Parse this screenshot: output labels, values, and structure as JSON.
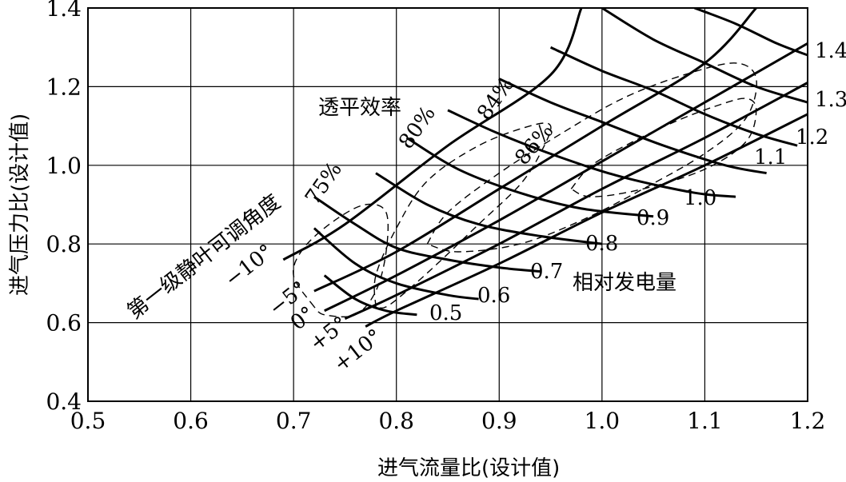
{
  "chart_data": {
    "type": "line",
    "title": "",
    "xlabel": "进气流量比(设计值)",
    "ylabel": "进气压力比(设计值)",
    "xlim": [
      0.5,
      1.2
    ],
    "ylim": [
      0.4,
      1.4
    ],
    "xticks": [
      "0.5",
      "0.6",
      "0.7",
      "0.8",
      "0.9",
      "1.0",
      "1.1",
      "1.2"
    ],
    "yticks": [
      "0.4",
      "0.6",
      "0.8",
      "1.0",
      "1.2",
      "1.4"
    ],
    "grid": true,
    "family_labels": {
      "igv": "第一级静叶可调角度",
      "efficiency": "透平效率",
      "power": "相对发电量"
    },
    "igv_lines": [
      {
        "label": "−10°",
        "points": [
          [
            0.69,
            0.76
          ],
          [
            0.75,
            0.85
          ],
          [
            0.85,
            1.05
          ],
          [
            0.95,
            1.23
          ],
          [
            0.98,
            1.4
          ]
        ]
      },
      {
        "label": "−5°",
        "points": [
          [
            0.72,
            0.68
          ],
          [
            0.8,
            0.78
          ],
          [
            0.9,
            0.94
          ],
          [
            1.0,
            1.1
          ],
          [
            1.1,
            1.26
          ],
          [
            1.15,
            1.4
          ]
        ]
      },
      {
        "label": "0°",
        "points": [
          [
            0.73,
            0.63
          ],
          [
            0.8,
            0.72
          ],
          [
            0.9,
            0.86
          ],
          [
            1.0,
            1.01
          ],
          [
            1.1,
            1.16
          ],
          [
            1.2,
            1.31
          ]
        ]
      },
      {
        "label": "+5°",
        "points": [
          [
            0.75,
            0.61
          ],
          [
            0.8,
            0.67
          ],
          [
            0.9,
            0.8
          ],
          [
            1.0,
            0.94
          ],
          [
            1.1,
            1.07
          ],
          [
            1.2,
            1.21
          ]
        ]
      },
      {
        "label": "+10°",
        "points": [
          [
            0.77,
            0.59
          ],
          [
            0.8,
            0.63
          ],
          [
            0.9,
            0.75
          ],
          [
            1.0,
            0.88
          ],
          [
            1.1,
            1.0
          ],
          [
            1.2,
            1.13
          ]
        ]
      }
    ],
    "power_lines": [
      {
        "label": "0.5",
        "points": [
          [
            0.73,
            0.72
          ],
          [
            0.76,
            0.66
          ],
          [
            0.79,
            0.63
          ],
          [
            0.82,
            0.62
          ]
        ]
      },
      {
        "label": "0.6",
        "points": [
          [
            0.72,
            0.84
          ],
          [
            0.76,
            0.75
          ],
          [
            0.8,
            0.7
          ],
          [
            0.85,
            0.67
          ],
          [
            0.88,
            0.66
          ]
        ]
      },
      {
        "label": "0.7",
        "points": [
          [
            0.72,
            0.92
          ],
          [
            0.76,
            0.85
          ],
          [
            0.8,
            0.79
          ],
          [
            0.85,
            0.76
          ],
          [
            0.9,
            0.74
          ],
          [
            0.94,
            0.73
          ]
        ]
      },
      {
        "label": "0.8",
        "points": [
          [
            0.78,
            0.98
          ],
          [
            0.83,
            0.9
          ],
          [
            0.88,
            0.85
          ],
          [
            0.94,
            0.82
          ],
          [
            1.0,
            0.8
          ]
        ]
      },
      {
        "label": "0.9",
        "points": [
          [
            0.81,
            1.07
          ],
          [
            0.86,
            0.99
          ],
          [
            0.92,
            0.93
          ],
          [
            0.98,
            0.89
          ],
          [
            1.05,
            0.87
          ]
        ]
      },
      {
        "label": "1.0",
        "points": [
          [
            0.85,
            1.14
          ],
          [
            0.9,
            1.08
          ],
          [
            0.96,
            1.02
          ],
          [
            1.02,
            0.97
          ],
          [
            1.09,
            0.93
          ],
          [
            1.13,
            0.92
          ]
        ]
      },
      {
        "label": "1.1",
        "points": [
          [
            0.9,
            1.22
          ],
          [
            0.95,
            1.16
          ],
          [
            1.0,
            1.11
          ],
          [
            1.06,
            1.05
          ],
          [
            1.12,
            1.0
          ],
          [
            1.16,
            0.98
          ]
        ]
      },
      {
        "label": "1.2",
        "points": [
          [
            0.95,
            1.3
          ],
          [
            1.0,
            1.24
          ],
          [
            1.05,
            1.19
          ],
          [
            1.1,
            1.13
          ],
          [
            1.15,
            1.08
          ],
          [
            1.19,
            1.05
          ]
        ]
      },
      {
        "label": "1.3",
        "points": [
          [
            1.0,
            1.4
          ],
          [
            1.05,
            1.32
          ],
          [
            1.1,
            1.26
          ],
          [
            1.15,
            1.2
          ],
          [
            1.2,
            1.16
          ]
        ]
      },
      {
        "label": "1.4",
        "points": [
          [
            1.09,
            1.4
          ],
          [
            1.13,
            1.36
          ],
          [
            1.17,
            1.31
          ],
          [
            1.2,
            1.28
          ]
        ]
      }
    ],
    "efficiency_contours": [
      {
        "label": "75%",
        "points": [
          [
            0.72,
            0.64
          ],
          [
            0.7,
            0.72
          ],
          [
            0.71,
            0.79
          ],
          [
            0.74,
            0.86
          ],
          [
            0.77,
            0.9
          ],
          [
            0.79,
            0.88
          ],
          [
            0.79,
            0.78
          ],
          [
            0.78,
            0.68
          ],
          [
            0.76,
            0.62
          ],
          [
            0.73,
            0.62
          ],
          [
            0.72,
            0.64
          ]
        ]
      },
      {
        "label": "80%",
        "points": [
          [
            0.78,
            0.64
          ],
          [
            0.78,
            0.72
          ],
          [
            0.8,
            0.84
          ],
          [
            0.83,
            0.96
          ],
          [
            0.88,
            1.05
          ],
          [
            0.93,
            1.1
          ],
          [
            0.95,
            1.1
          ],
          [
            0.94,
            1.03
          ],
          [
            0.92,
            0.95
          ],
          [
            0.88,
            0.85
          ],
          [
            0.84,
            0.75
          ],
          [
            0.81,
            0.68
          ],
          [
            0.79,
            0.64
          ],
          [
            0.78,
            0.64
          ]
        ]
      },
      {
        "label": "84%",
        "points": [
          [
            0.83,
            0.8
          ],
          [
            0.85,
            0.88
          ],
          [
            0.9,
            0.98
          ],
          [
            0.96,
            1.08
          ],
          [
            1.02,
            1.17
          ],
          [
            1.08,
            1.23
          ],
          [
            1.13,
            1.26
          ],
          [
            1.15,
            1.22
          ],
          [
            1.14,
            1.12
          ],
          [
            1.1,
            1.03
          ],
          [
            1.04,
            0.94
          ],
          [
            0.98,
            0.86
          ],
          [
            0.92,
            0.8
          ],
          [
            0.86,
            0.78
          ],
          [
            0.83,
            0.8
          ]
        ]
      },
      {
        "label": "86%",
        "points": [
          [
            0.97,
            0.94
          ],
          [
            0.99,
            1.0
          ],
          [
            1.03,
            1.06
          ],
          [
            1.07,
            1.11
          ],
          [
            1.11,
            1.15
          ],
          [
            1.14,
            1.17
          ],
          [
            1.15,
            1.14
          ],
          [
            1.14,
            1.06
          ],
          [
            1.1,
            0.99
          ],
          [
            1.04,
            0.94
          ],
          [
            0.99,
            0.92
          ],
          [
            0.97,
            0.94
          ]
        ]
      }
    ]
  },
  "labels": {
    "igv_title": "第一级静叶可调角度",
    "igv_m10": "−10°",
    "igv_m5": "−5°",
    "igv_0": "0°",
    "igv_p5": "+5°",
    "igv_p10": "+10°",
    "eff_title": "透平效率",
    "eff_75": "75%",
    "eff_80": "80%",
    "eff_84": "84%",
    "eff_86": "86%",
    "power_title": "相对发电量",
    "p05": "0.5",
    "p06": "0.6",
    "p07": "0.7",
    "p08": "0.8",
    "p09": "0.9",
    "p10": "1.0",
    "p11": "1.1",
    "p12": "1.2",
    "p13": "1.3",
    "p14": "1.4",
    "xlabel": "进气流量比(设计值)",
    "ylabel": "进气压力比(设计值)"
  }
}
